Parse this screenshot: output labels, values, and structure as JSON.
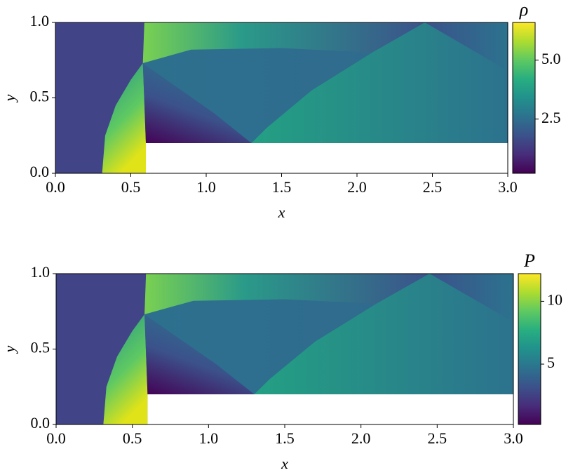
{
  "chart_data": [
    {
      "type": "heatmap",
      "x_label": "x",
      "y_label": "y",
      "colorbar_label": "ρ",
      "xlim": [
        0,
        3
      ],
      "ylim": [
        0,
        1
      ],
      "xticks": [
        {
          "value": 0,
          "label": "0.0"
        },
        {
          "value": 0.5,
          "label": "0.5"
        },
        {
          "value": 1,
          "label": "1.0"
        },
        {
          "value": 1.5,
          "label": "1.5"
        },
        {
          "value": 2,
          "label": "2.0"
        },
        {
          "value": 2.5,
          "label": "2.5"
        },
        {
          "value": 3,
          "label": "3.0"
        }
      ],
      "yticks": [
        {
          "value": 0,
          "label": "0.0"
        },
        {
          "value": 0.5,
          "label": "0.5"
        },
        {
          "value": 1,
          "label": "1.0"
        }
      ],
      "clim": [
        0.2,
        6.6
      ],
      "cticks": [
        {
          "value": 2.5,
          "label": "2.5"
        },
        {
          "value": 5,
          "label": "5.0"
        }
      ],
      "colormap": "viridis"
    },
    {
      "type": "heatmap",
      "x_label": "x",
      "y_label": "y",
      "colorbar_label": "P",
      "xlim": [
        0,
        3
      ],
      "ylim": [
        0,
        1
      ],
      "xticks": [
        {
          "value": 0,
          "label": "0.0"
        },
        {
          "value": 0.5,
          "label": "0.5"
        },
        {
          "value": 1,
          "label": "1.0"
        },
        {
          "value": 1.5,
          "label": "1.5"
        },
        {
          "value": 2,
          "label": "2.0"
        },
        {
          "value": 2.5,
          "label": "2.5"
        },
        {
          "value": 3,
          "label": "3.0"
        }
      ],
      "yticks": [
        {
          "value": 0,
          "label": "0.0"
        },
        {
          "value": 0.5,
          "label": "0.5"
        },
        {
          "value": 1,
          "label": "1.0"
        }
      ],
      "clim": [
        0.2,
        12.2
      ],
      "cticks": [
        5,
        10
      ],
      "colormap": "viridis"
    }
  ]
}
